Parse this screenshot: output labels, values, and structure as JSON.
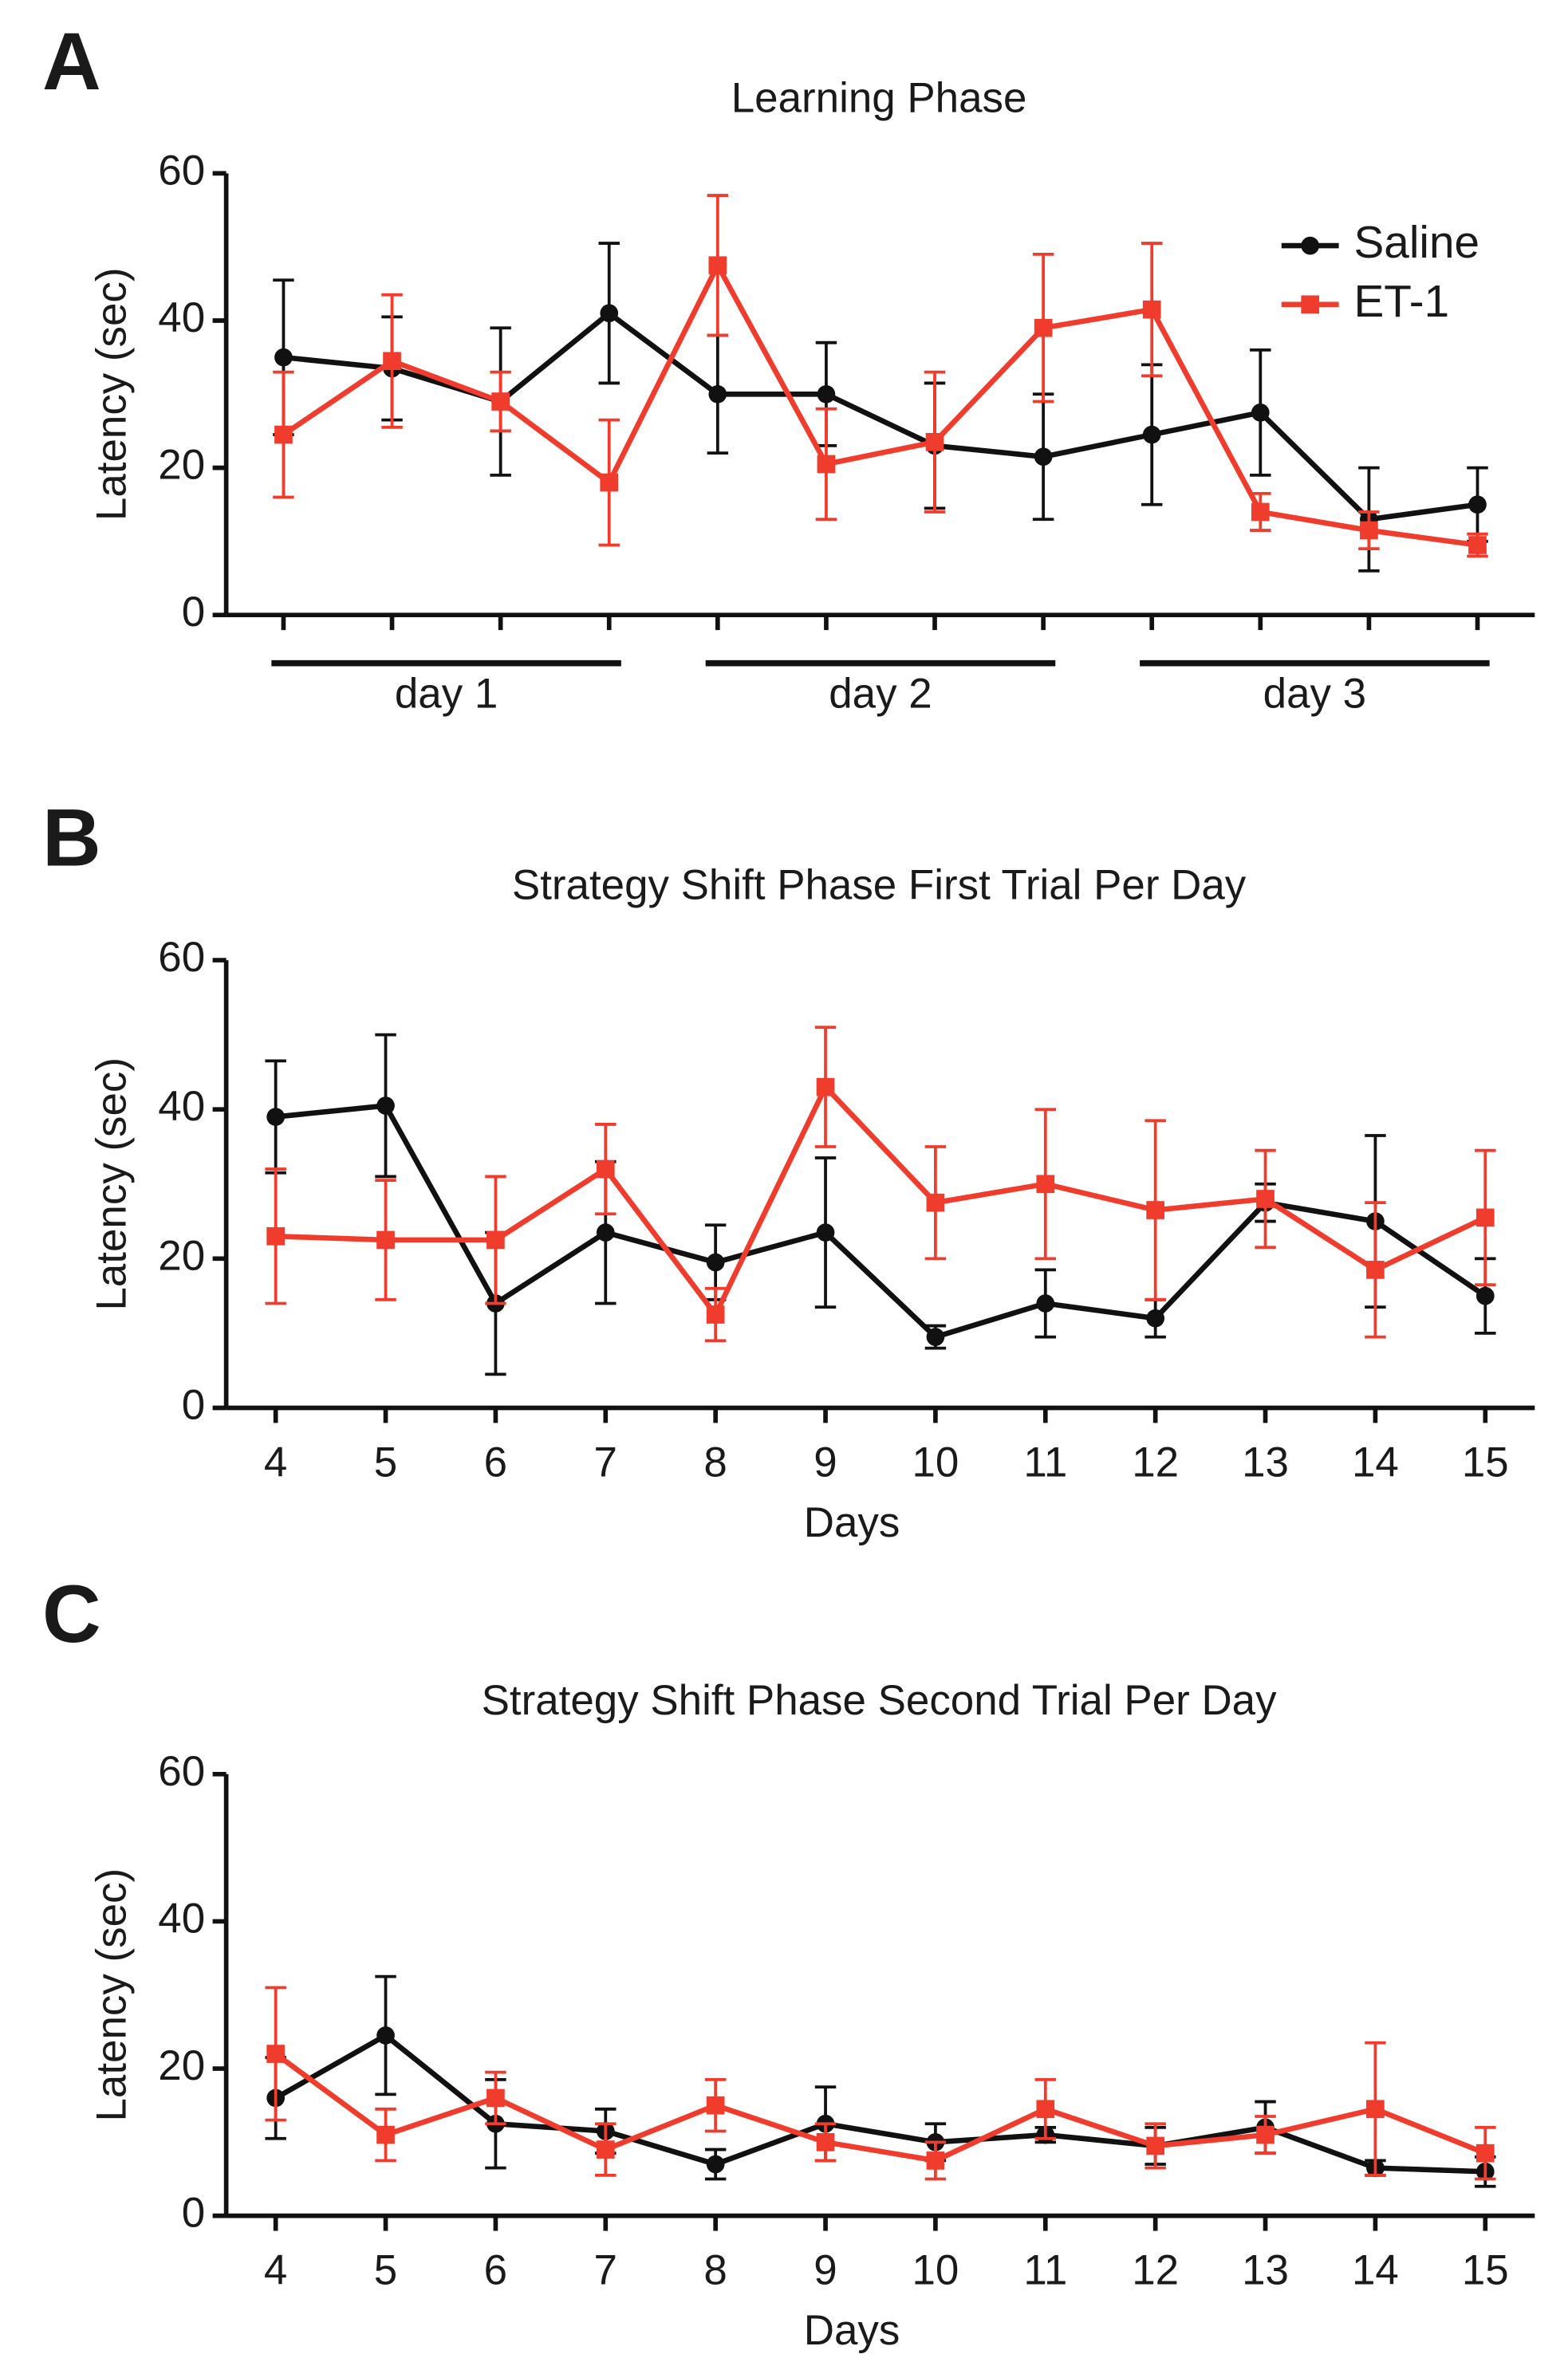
{
  "chart_data": [
    {
      "type": "line",
      "panel_label": "A",
      "title": "Learning Phase",
      "y_label": "Latency (sec)",
      "categories": [
        null,
        null,
        null,
        null,
        null,
        null,
        null,
        null,
        null,
        null,
        null,
        null
      ],
      "group_labels": [
        "day 1",
        "day 2",
        "day 3"
      ],
      "ylim": [
        0,
        60
      ],
      "yticks": [
        0,
        20,
        40,
        60
      ],
      "grid": false,
      "legend": "upper right",
      "series": [
        {
          "name": "Saline",
          "color": "#111111",
          "marker": "circle",
          "values": [
            35,
            33.5,
            29,
            41,
            30,
            30,
            23,
            21.5,
            24.5,
            27.5,
            13,
            15
          ],
          "errors": [
            10.5,
            7,
            10,
            9.5,
            8,
            7,
            8.5,
            8.5,
            9.5,
            8.5,
            7,
            5
          ]
        },
        {
          "name": "ET-1",
          "color": "#f03c2c",
          "marker": "square",
          "values": [
            24.5,
            34.5,
            29,
            18,
            47.5,
            20.5,
            23.5,
            39,
            41.5,
            14,
            11.5,
            9.5
          ],
          "errors": [
            8.5,
            9,
            4,
            8.5,
            9.5,
            7.5,
            9.5,
            10,
            9,
            2.5,
            2.5,
            1.5
          ]
        }
      ]
    },
    {
      "type": "line",
      "panel_label": "B",
      "title": "Strategy Shift Phase First Trial Per Day",
      "y_label": "Latency (sec)",
      "x_label": "Days",
      "x": [
        4,
        5,
        6,
        7,
        8,
        9,
        10,
        11,
        12,
        13,
        14,
        15
      ],
      "xlim": [
        3.55,
        15.45
      ],
      "xticks": [
        4,
        5,
        6,
        7,
        8,
        9,
        10,
        11,
        12,
        13,
        14,
        15
      ],
      "ylim": [
        0,
        60
      ],
      "yticks": [
        0,
        20,
        40,
        60
      ],
      "grid": false,
      "series": [
        {
          "color": "#111111",
          "marker": "circle",
          "values": [
            39,
            40.5,
            14,
            23.5,
            19.5,
            23.5,
            9.5,
            14,
            12,
            27.5,
            25,
            15
          ],
          "errors": [
            7.5,
            9.5,
            9.5,
            9.5,
            5,
            10,
            1.5,
            4.5,
            2.5,
            2.5,
            11.5,
            5
          ]
        },
        {
          "color": "#f03c2c",
          "marker": "square",
          "values": [
            23,
            22.5,
            22.5,
            32,
            12.5,
            43,
            27.5,
            30,
            26.5,
            28,
            18.5,
            25.5
          ],
          "errors": [
            9,
            8,
            8.5,
            6,
            3.5,
            8,
            7.5,
            10,
            12,
            6.5,
            9,
            9
          ]
        }
      ]
    },
    {
      "type": "line",
      "panel_label": "C",
      "title": "Strategy Shift Phase Second Trial Per Day",
      "y_label": "Latency (sec)",
      "x_label": "Days",
      "x": [
        4,
        5,
        6,
        7,
        8,
        9,
        10,
        11,
        12,
        13,
        14,
        15
      ],
      "xlim": [
        3.55,
        15.45
      ],
      "xticks": [
        4,
        5,
        6,
        7,
        8,
        9,
        10,
        11,
        12,
        13,
        14,
        15
      ],
      "ylim": [
        0,
        60
      ],
      "yticks": [
        0,
        20,
        40,
        60
      ],
      "grid": false,
      "series": [
        {
          "color": "#111111",
          "marker": "circle",
          "values": [
            16,
            24.5,
            12.5,
            11.5,
            7,
            12.5,
            10,
            11,
            9.5,
            12,
            6.5,
            6
          ],
          "errors": [
            5.5,
            8,
            6,
            3,
            2,
            5,
            2.5,
            1,
            2.5,
            3.5,
            1,
            2
          ]
        },
        {
          "color": "#f03c2c",
          "marker": "square",
          "values": [
            22,
            11,
            16,
            9,
            15,
            10,
            7.5,
            14.5,
            9.5,
            11,
            14.5,
            8.5
          ],
          "errors": [
            9,
            3.5,
            3.5,
            3.5,
            3.5,
            2.5,
            2.5,
            4,
            3,
            2.5,
            9,
            3.5
          ]
        }
      ]
    }
  ]
}
